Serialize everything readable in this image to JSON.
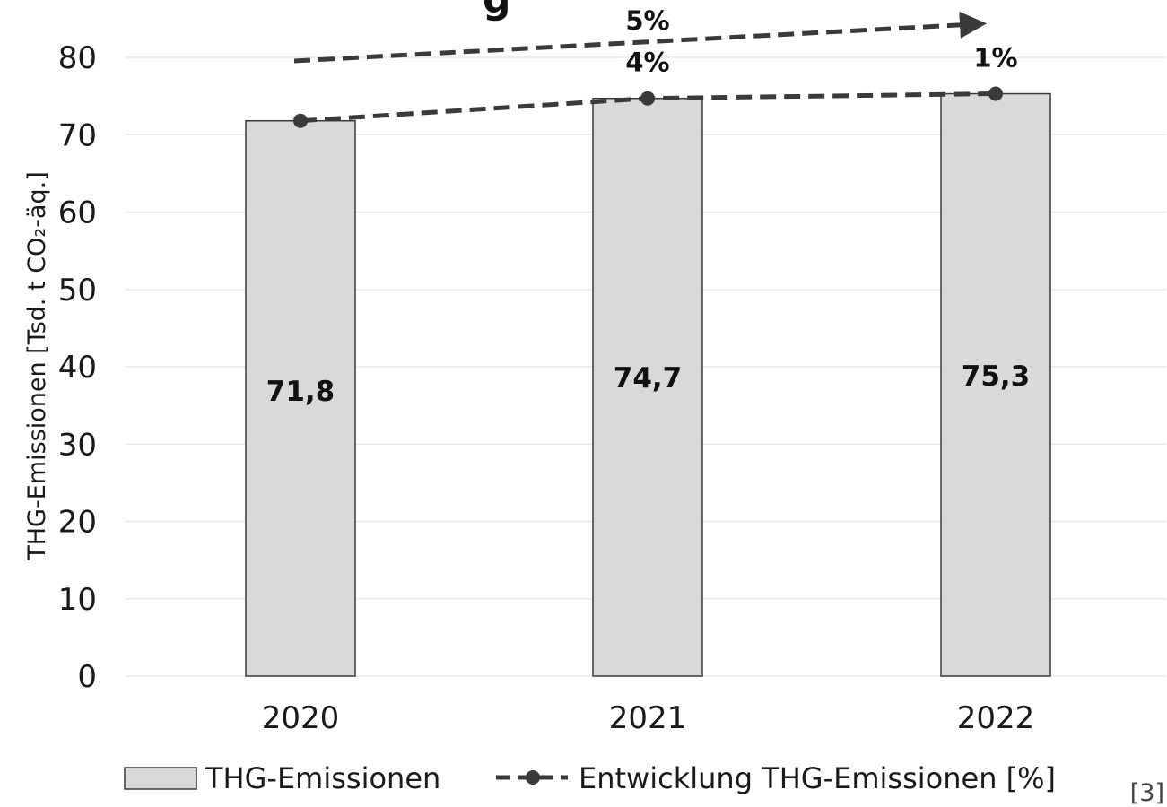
{
  "chart_data": {
    "type": "bar",
    "title_fragment": "g",
    "categories": [
      "2020",
      "2021",
      "2022"
    ],
    "series": [
      {
        "name": "THG-Emissionen",
        "type": "bar",
        "values": [
          71.8,
          74.7,
          75.3
        ],
        "value_labels": [
          "71,8",
          "74,7",
          "75,3"
        ],
        "color": "#d9d9d9"
      },
      {
        "name": "Entwicklung THG-Emissionen [%]",
        "type": "line",
        "style": "dashed with dot markers",
        "values": [
          71.8,
          74.7,
          75.3
        ],
        "point_labels": [
          "",
          "4%",
          "1%"
        ],
        "color": "#3a3a3a"
      }
    ],
    "trend_arrow": {
      "label": "5%",
      "from": "2020",
      "to": "2022"
    },
    "ylabel": "THG-Emissionen [Tsd. t CO₂-äq.]",
    "xlabel": "",
    "ylim": [
      0,
      80
    ],
    "yticks": [
      0,
      10,
      20,
      30,
      40,
      50,
      60,
      70,
      80
    ],
    "grid": true,
    "legend_position": "bottom",
    "source": "[3]"
  }
}
